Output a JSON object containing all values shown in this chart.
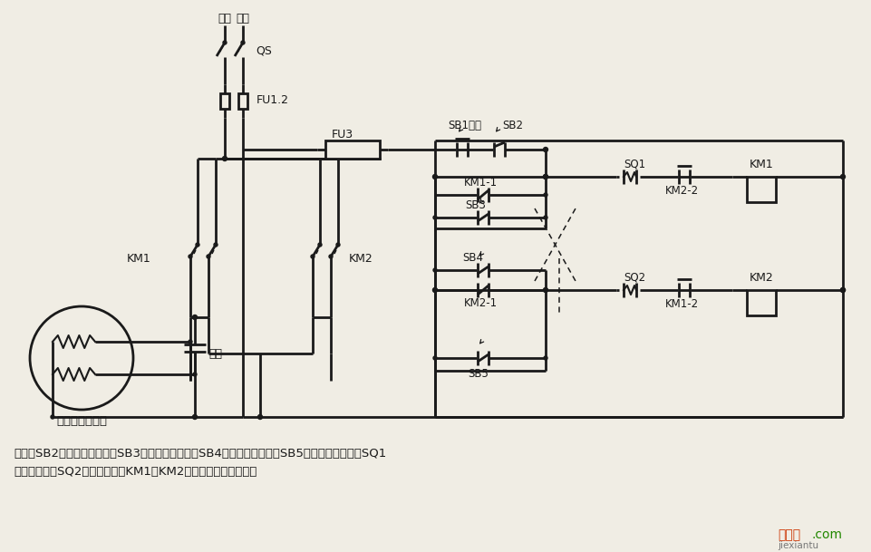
{
  "bg_color": "#f0ede4",
  "line_color": "#1a1a1a",
  "fig_width": 9.62,
  "fig_height": 6.09,
  "bottom_text1": "说明：SB2为上升启动按鈕，SB3为上升点动按鈕，SB4为下降启动按鈕，SB5为下降点动按鈕；SQ1",
  "bottom_text2": "为最高限位，SQ2为最低限位。KM1、KM2可用中间继电器代替。",
  "motor_label": "单相电容电动机",
  "cap_label": "电容",
  "hx_label": "火线",
  "lx_label": "零线"
}
